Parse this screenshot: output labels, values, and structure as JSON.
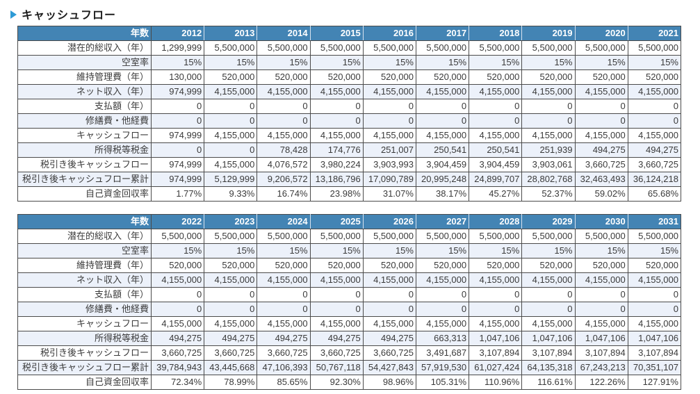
{
  "page_title": {
    "text": "キャッシュフロー"
  },
  "colors": {
    "header_bg": "#4384B4",
    "alt_row_bg": "#ECF1FA",
    "title_accent": "#2E9BD6",
    "border": "#4A4A4A"
  },
  "year_header_label": "年数",
  "tables": [
    {
      "years": [
        "2012",
        "2013",
        "2014",
        "2015",
        "2016",
        "2017",
        "2018",
        "2019",
        "2020",
        "2021"
      ],
      "rows": [
        {
          "label": "潜在的総収入（年）",
          "values": [
            "1,299,999",
            "5,500,000",
            "5,500,000",
            "5,500,000",
            "5,500,000",
            "5,500,000",
            "5,500,000",
            "5,500,000",
            "5,500,000",
            "5,500,000"
          ]
        },
        {
          "label": "空室率",
          "values": [
            "15%",
            "15%",
            "15%",
            "15%",
            "15%",
            "15%",
            "15%",
            "15%",
            "15%",
            "15%"
          ]
        },
        {
          "label": "維持管理費（年）",
          "values": [
            "130,000",
            "520,000",
            "520,000",
            "520,000",
            "520,000",
            "520,000",
            "520,000",
            "520,000",
            "520,000",
            "520,000"
          ]
        },
        {
          "label": "ネット収入（年）",
          "values": [
            "974,999",
            "4,155,000",
            "4,155,000",
            "4,155,000",
            "4,155,000",
            "4,155,000",
            "4,155,000",
            "4,155,000",
            "4,155,000",
            "4,155,000"
          ]
        },
        {
          "label": "支払額（年）",
          "values": [
            "0",
            "0",
            "0",
            "0",
            "0",
            "0",
            "0",
            "0",
            "0",
            "0"
          ]
        },
        {
          "label": "修繕費・他経費",
          "values": [
            "0",
            "0",
            "0",
            "0",
            "0",
            "0",
            "0",
            "0",
            "0",
            "0"
          ]
        },
        {
          "label": "キャッシュフロー",
          "values": [
            "974,999",
            "4,155,000",
            "4,155,000",
            "4,155,000",
            "4,155,000",
            "4,155,000",
            "4,155,000",
            "4,155,000",
            "4,155,000",
            "4,155,000"
          ]
        },
        {
          "label": "所得税等税金",
          "values": [
            "0",
            "0",
            "78,428",
            "174,776",
            "251,007",
            "250,541",
            "250,541",
            "251,939",
            "494,275",
            "494,275"
          ]
        },
        {
          "label": "税引き後キャッシュフロー",
          "values": [
            "974,999",
            "4,155,000",
            "4,076,572",
            "3,980,224",
            "3,903,993",
            "3,904,459",
            "3,904,459",
            "3,903,061",
            "3,660,725",
            "3,660,725"
          ]
        },
        {
          "label": "税引き後キャッシュフロー累計",
          "values": [
            "974,999",
            "5,129,999",
            "9,206,572",
            "13,186,796",
            "17,090,789",
            "20,995,248",
            "24,899,707",
            "28,802,768",
            "32,463,493",
            "36,124,218"
          ]
        },
        {
          "label": "自己資金回収率",
          "values": [
            "1.77%",
            "9.33%",
            "16.74%",
            "23.98%",
            "31.07%",
            "38.17%",
            "45.27%",
            "52.37%",
            "59.02%",
            "65.68%"
          ]
        }
      ]
    },
    {
      "years": [
        "2022",
        "2023",
        "2024",
        "2025",
        "2026",
        "2027",
        "2028",
        "2029",
        "2030",
        "2031"
      ],
      "rows": [
        {
          "label": "潜在的総収入（年）",
          "values": [
            "5,500,000",
            "5,500,000",
            "5,500,000",
            "5,500,000",
            "5,500,000",
            "5,500,000",
            "5,500,000",
            "5,500,000",
            "5,500,000",
            "5,500,000"
          ]
        },
        {
          "label": "空室率",
          "values": [
            "15%",
            "15%",
            "15%",
            "15%",
            "15%",
            "15%",
            "15%",
            "15%",
            "15%",
            "15%"
          ]
        },
        {
          "label": "維持管理費（年）",
          "values": [
            "520,000",
            "520,000",
            "520,000",
            "520,000",
            "520,000",
            "520,000",
            "520,000",
            "520,000",
            "520,000",
            "520,000"
          ]
        },
        {
          "label": "ネット収入（年）",
          "values": [
            "4,155,000",
            "4,155,000",
            "4,155,000",
            "4,155,000",
            "4,155,000",
            "4,155,000",
            "4,155,000",
            "4,155,000",
            "4,155,000",
            "4,155,000"
          ]
        },
        {
          "label": "支払額（年）",
          "values": [
            "0",
            "0",
            "0",
            "0",
            "0",
            "0",
            "0",
            "0",
            "0",
            "0"
          ]
        },
        {
          "label": "修繕費・他経費",
          "values": [
            "0",
            "0",
            "0",
            "0",
            "0",
            "0",
            "0",
            "0",
            "0",
            "0"
          ]
        },
        {
          "label": "キャッシュフロー",
          "values": [
            "4,155,000",
            "4,155,000",
            "4,155,000",
            "4,155,000",
            "4,155,000",
            "4,155,000",
            "4,155,000",
            "4,155,000",
            "4,155,000",
            "4,155,000"
          ]
        },
        {
          "label": "所得税等税金",
          "values": [
            "494,275",
            "494,275",
            "494,275",
            "494,275",
            "494,275",
            "663,313",
            "1,047,106",
            "1,047,106",
            "1,047,106",
            "1,047,106"
          ]
        },
        {
          "label": "税引き後キャッシュフロー",
          "values": [
            "3,660,725",
            "3,660,725",
            "3,660,725",
            "3,660,725",
            "3,660,725",
            "3,491,687",
            "3,107,894",
            "3,107,894",
            "3,107,894",
            "3,107,894"
          ]
        },
        {
          "label": "税引き後キャッシュフロー累計",
          "values": [
            "39,784,943",
            "43,445,668",
            "47,106,393",
            "50,767,118",
            "54,427,843",
            "57,919,530",
            "61,027,424",
            "64,135,318",
            "67,243,213",
            "70,351,107"
          ]
        },
        {
          "label": "自己資金回収率",
          "values": [
            "72.34%",
            "78.99%",
            "85.65%",
            "92.30%",
            "98.96%",
            "105.31%",
            "110.96%",
            "116.61%",
            "122.26%",
            "127.91%"
          ]
        }
      ]
    }
  ]
}
